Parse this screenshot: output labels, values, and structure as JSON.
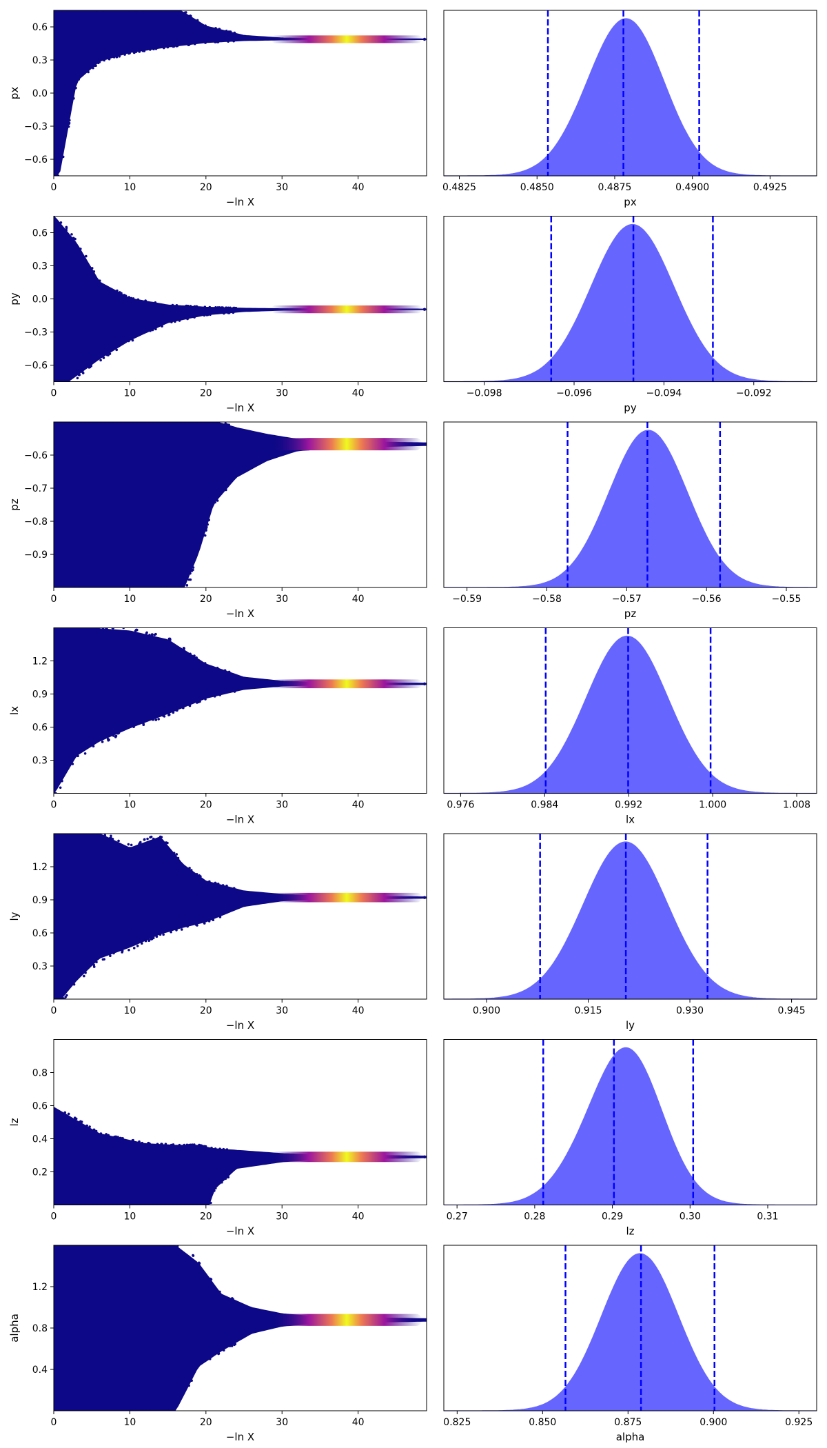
{
  "colors": {
    "trace_low": "#0d0887",
    "trace_mid": "#cc4778",
    "trace_high": "#f0f921",
    "posterior_fill": "#6666ff",
    "posterior_line": "#0000ff"
  },
  "chart_data": [
    {
      "type": "scatter",
      "panel": "trace",
      "param": "px",
      "xlabel": "−ln X",
      "ylabel": "px",
      "xlim": [
        0,
        49
      ],
      "ylim": [
        -0.75,
        0.75
      ],
      "xticks": [
        "0",
        "10",
        "20",
        "30",
        "40"
      ],
      "xtick_values": [
        0,
        10,
        20,
        30,
        40
      ],
      "yticks": [
        "−0.6",
        "−0.3",
        "0.0",
        "0.3",
        "0.6"
      ],
      "ytick_values": [
        -0.6,
        -0.3,
        0,
        0.3,
        0.6
      ],
      "converged_value": 0.4878,
      "lower_bound": [
        -0.75,
        -0.75
      ],
      "upper_bound": [
        0.75,
        0.75
      ],
      "spread": [
        [
          0,
          1.5,
          1.5
        ],
        [
          3,
          1.05,
          0.38
        ],
        [
          6,
          0.72,
          0.2
        ],
        [
          10,
          0.5,
          0.12
        ],
        [
          15,
          0.33,
          0.07
        ],
        [
          20,
          0.12,
          0.03
        ],
        [
          25,
          0.035,
          0.012
        ],
        [
          30,
          0.012,
          0.006
        ],
        [
          35,
          0.006,
          0.004
        ],
        [
          49,
          0.003,
          0.003
        ]
      ],
      "peak_x": 38.5,
      "peak_width": 4.5
    },
    {
      "type": "area",
      "panel": "posterior",
      "param": "px",
      "xlabel": "px",
      "xlim": [
        0.482,
        0.494
      ],
      "xticks": [
        "0.4825",
        "0.4850",
        "0.4875",
        "0.4900",
        "0.4925"
      ],
      "xtick_values": [
        0.4825,
        0.485,
        0.4875,
        0.49,
        0.4925
      ],
      "mean": 0.4878,
      "sd": 0.00123,
      "skew": 0.05,
      "quantile_lines": [
        0.48535,
        0.48778,
        0.49022
      ]
    },
    {
      "type": "scatter",
      "panel": "trace",
      "param": "py",
      "xlabel": "−ln X",
      "ylabel": "py",
      "xlim": [
        0,
        49
      ],
      "ylim": [
        -0.75,
        0.75
      ],
      "xticks": [
        "0",
        "10",
        "20",
        "30",
        "40"
      ],
      "xtick_values": [
        0,
        10,
        20,
        30,
        40
      ],
      "yticks": [
        "−0.6",
        "−0.3",
        "0.0",
        "0.3",
        "0.6"
      ],
      "ytick_values": [
        -0.6,
        -0.3,
        0,
        0.3,
        0.6
      ],
      "converged_value": -0.0947,
      "lower_bound": [
        -0.75,
        -0.75
      ],
      "upper_bound": [
        0.75,
        0.75
      ],
      "spread": [
        [
          0,
          0.85,
          0.75
        ],
        [
          3,
          0.6,
          0.6
        ],
        [
          6,
          0.25,
          0.45
        ],
        [
          10,
          0.1,
          0.28
        ],
        [
          15,
          0.04,
          0.12
        ],
        [
          20,
          0.02,
          0.05
        ],
        [
          25,
          0.01,
          0.02
        ],
        [
          30,
          0.006,
          0.008
        ],
        [
          49,
          0.003,
          0.003
        ]
      ],
      "peak_x": 38.5,
      "peak_width": 4.5
    },
    {
      "type": "area",
      "panel": "posterior",
      "param": "py",
      "xlabel": "py",
      "xlim": [
        -0.0989,
        -0.0906
      ],
      "xticks": [
        "−0.098",
        "−0.096",
        "−0.094",
        "−0.092"
      ],
      "xtick_values": [
        -0.098,
        -0.096,
        -0.094,
        -0.092
      ],
      "mean": -0.0947,
      "sd": 0.00092,
      "skew": 0.0,
      "quantile_lines": [
        -0.09651,
        -0.09468,
        -0.09291
      ]
    },
    {
      "type": "scatter",
      "panel": "trace",
      "param": "pz",
      "xlabel": "−ln X",
      "ylabel": "pz",
      "xlim": [
        0,
        49
      ],
      "ylim": [
        -1.0,
        -0.5
      ],
      "xticks": [
        "0",
        "10",
        "20",
        "30",
        "40"
      ],
      "xtick_values": [
        0,
        10,
        20,
        30,
        40
      ],
      "yticks": [
        "−0.9",
        "−0.8",
        "−0.7",
        "−0.6"
      ],
      "ytick_values": [
        -0.9,
        -0.8,
        -0.7,
        -0.6
      ],
      "converged_value": -0.567,
      "lower_bound": [
        -1.0,
        -1.0
      ],
      "upper_bound": [
        -0.5,
        -0.5
      ],
      "spread": [
        [
          0,
          0.1,
          0.5
        ],
        [
          10,
          0.1,
          0.5
        ],
        [
          14,
          0.1,
          0.5
        ],
        [
          17,
          0.09,
          0.44
        ],
        [
          19,
          0.08,
          0.33
        ],
        [
          21,
          0.07,
          0.18
        ],
        [
          24,
          0.05,
          0.1
        ],
        [
          28,
          0.03,
          0.05
        ],
        [
          32,
          0.015,
          0.02
        ],
        [
          38,
          0.008,
          0.01
        ],
        [
          49,
          0.004,
          0.004
        ]
      ],
      "peak_x": 38.5,
      "peak_width": 4.5
    },
    {
      "type": "area",
      "panel": "posterior",
      "param": "pz",
      "xlabel": "pz",
      "xlim": [
        -0.5929,
        -0.5462
      ],
      "xticks": [
        "−0.59",
        "−0.58",
        "−0.57",
        "−0.56",
        "−0.55"
      ],
      "xtick_values": [
        -0.59,
        -0.58,
        -0.57,
        -0.56,
        -0.55
      ],
      "mean": -0.5673,
      "sd": 0.0049,
      "skew": 0.0,
      "quantile_lines": [
        -0.5774,
        -0.5674,
        -0.5583
      ]
    },
    {
      "type": "scatter",
      "panel": "trace",
      "param": "lx",
      "xlabel": "−ln X",
      "ylabel": "lx",
      "xlim": [
        0,
        49
      ],
      "ylim": [
        0,
        1.5
      ],
      "xticks": [
        "0",
        "10",
        "20",
        "30",
        "40"
      ],
      "xtick_values": [
        0,
        10,
        20,
        30,
        40
      ],
      "yticks": [
        "0.3",
        "0.6",
        "0.9",
        "1.2"
      ],
      "ytick_values": [
        0.3,
        0.6,
        0.9,
        1.2
      ],
      "converged_value": 0.992,
      "lower_bound": [
        0,
        0
      ],
      "upper_bound": [
        1.5,
        1.5
      ],
      "spread": [
        [
          0,
          0.6,
          1.0
        ],
        [
          3,
          0.55,
          0.65
        ],
        [
          6,
          0.5,
          0.52
        ],
        [
          10,
          0.48,
          0.4
        ],
        [
          15,
          0.4,
          0.27
        ],
        [
          20,
          0.18,
          0.13
        ],
        [
          25,
          0.06,
          0.05
        ],
        [
          30,
          0.025,
          0.02
        ],
        [
          35,
          0.012,
          0.01
        ],
        [
          49,
          0.006,
          0.006
        ]
      ],
      "peak_x": 38.5,
      "peak_width": 4.5
    },
    {
      "type": "area",
      "panel": "posterior",
      "param": "lx",
      "xlabel": "lx",
      "xlim": [
        0.9744,
        1.0099
      ],
      "xticks": [
        "0.976",
        "0.984",
        "0.992",
        "1.000",
        "1.008"
      ],
      "xtick_values": [
        0.976,
        0.984,
        0.992,
        1.0,
        1.008
      ],
      "mean": 0.99185,
      "sd": 0.0039,
      "skew": 0.0,
      "quantile_lines": [
        0.9841,
        0.99195,
        0.9998
      ]
    },
    {
      "type": "scatter",
      "panel": "trace",
      "param": "ly",
      "xlabel": "−ln X",
      "ylabel": "ly",
      "xlim": [
        0,
        49
      ],
      "ylim": [
        0,
        1.5
      ],
      "xticks": [
        "0",
        "10",
        "20",
        "30",
        "40"
      ],
      "xtick_values": [
        0,
        10,
        20,
        30,
        40
      ],
      "yticks": [
        "0.3",
        "0.6",
        "0.9",
        "1.2"
      ],
      "ytick_values": [
        0.3,
        0.6,
        0.9,
        1.2
      ],
      "converged_value": 0.9205,
      "lower_bound": [
        0,
        0
      ],
      "upper_bound": [
        1.5,
        1.5
      ],
      "spread": [
        [
          0,
          0.6,
          1.0
        ],
        [
          3,
          0.6,
          0.75
        ],
        [
          6,
          0.58,
          0.55
        ],
        [
          10,
          0.45,
          0.45
        ],
        [
          14,
          0.55,
          0.33
        ],
        [
          17,
          0.3,
          0.27
        ],
        [
          20,
          0.15,
          0.22
        ],
        [
          25,
          0.06,
          0.08
        ],
        [
          30,
          0.03,
          0.03
        ],
        [
          35,
          0.015,
          0.015
        ],
        [
          49,
          0.006,
          0.006
        ]
      ],
      "peak_x": 38.5,
      "peak_width": 4.5
    },
    {
      "type": "area",
      "panel": "posterior",
      "param": "ly",
      "xlabel": "ly",
      "xlim": [
        0.8937,
        0.9487
      ],
      "xticks": [
        "0.900",
        "0.915",
        "0.930",
        "0.945"
      ],
      "xtick_values": [
        0.9,
        0.915,
        0.93,
        0.945
      ],
      "mean": 0.9205,
      "sd": 0.0062,
      "skew": 0.0,
      "quantile_lines": [
        0.9079,
        0.92055,
        0.9326
      ]
    },
    {
      "type": "scatter",
      "panel": "trace",
      "param": "lz",
      "xlabel": "−ln X",
      "ylabel": "lz",
      "xlim": [
        0,
        49
      ],
      "ylim": [
        0,
        1.0
      ],
      "xticks": [
        "0",
        "10",
        "20",
        "30",
        "40"
      ],
      "xtick_values": [
        0,
        10,
        20,
        30,
        40
      ],
      "yticks": [
        "0.2",
        "0.4",
        "0.6",
        "0.8"
      ],
      "ytick_values": [
        0.2,
        0.4,
        0.6,
        0.8
      ],
      "converged_value": 0.2905,
      "lower_bound": [
        0,
        0
      ],
      "upper_bound": [
        1.0,
        1.0
      ],
      "spread": [
        [
          0,
          0.3,
          0.72
        ],
        [
          6,
          0.14,
          0.72
        ],
        [
          12,
          0.08,
          0.72
        ],
        [
          16,
          0.07,
          0.72
        ],
        [
          19,
          0.07,
          0.6
        ],
        [
          21,
          0.05,
          0.2
        ],
        [
          24,
          0.04,
          0.07
        ],
        [
          30,
          0.02,
          0.03
        ],
        [
          35,
          0.012,
          0.015
        ],
        [
          49,
          0.005,
          0.005
        ]
      ],
      "peak_x": 38.5,
      "peak_width": 4.5
    },
    {
      "type": "area",
      "panel": "posterior",
      "param": "lz",
      "xlabel": "lz",
      "xlim": [
        0.2683,
        0.3163
      ],
      "xticks": [
        "0.27",
        "0.28",
        "0.29",
        "0.30",
        "0.31"
      ],
      "xtick_values": [
        0.27,
        0.28,
        0.29,
        0.3,
        0.31
      ],
      "mean": 0.2908,
      "sd": 0.0049,
      "skew": 0.2,
      "quantile_lines": [
        0.2811,
        0.2902,
        0.3004
      ]
    },
    {
      "type": "scatter",
      "panel": "trace",
      "param": "alpha",
      "xlabel": "−ln X",
      "ylabel": "alpha",
      "xlim": [
        0,
        49
      ],
      "ylim": [
        0,
        1.6
      ],
      "xticks": [
        "0",
        "10",
        "20",
        "30",
        "40"
      ],
      "xtick_values": [
        0,
        10,
        20,
        30,
        40
      ],
      "yticks": [
        "0.4",
        "0.8",
        "1.2"
      ],
      "ytick_values": [
        0.4,
        0.8,
        1.2
      ],
      "converged_value": 0.878,
      "lower_bound": [
        0,
        0
      ],
      "upper_bound": [
        1.6,
        1.6
      ],
      "spread": [
        [
          0,
          0.72,
          0.88
        ],
        [
          12,
          0.72,
          0.88
        ],
        [
          16,
          0.72,
          0.88
        ],
        [
          19,
          0.55,
          0.45
        ],
        [
          22,
          0.25,
          0.3
        ],
        [
          26,
          0.12,
          0.13
        ],
        [
          30,
          0.06,
          0.06
        ],
        [
          35,
          0.03,
          0.03
        ],
        [
          49,
          0.012,
          0.012
        ]
      ],
      "peak_x": 38.5,
      "peak_width": 4.5
    },
    {
      "type": "area",
      "panel": "posterior",
      "param": "alpha",
      "xlabel": "alpha",
      "xlim": [
        0.8211,
        0.9302
      ],
      "xticks": [
        "0.825",
        "0.850",
        "0.875",
        "0.900",
        "0.925"
      ],
      "xtick_values": [
        0.825,
        0.85,
        0.875,
        0.9,
        0.925
      ],
      "mean": 0.8785,
      "sd": 0.0112,
      "skew": 0.0,
      "quantile_lines": [
        0.8567,
        0.8788,
        0.9003
      ]
    }
  ]
}
